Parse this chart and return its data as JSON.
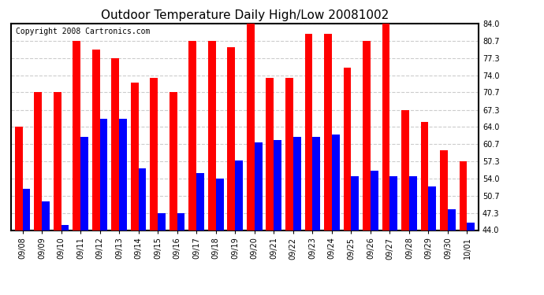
{
  "title": "Outdoor Temperature Daily High/Low 20081002",
  "copyright": "Copyright 2008 Cartronics.com",
  "dates": [
    "09/08",
    "09/09",
    "09/10",
    "09/11",
    "09/12",
    "09/13",
    "09/14",
    "09/15",
    "09/16",
    "09/17",
    "09/18",
    "09/19",
    "09/20",
    "09/21",
    "09/22",
    "09/23",
    "09/24",
    "09/25",
    "09/26",
    "09/27",
    "09/28",
    "09/29",
    "09/30",
    "10/01"
  ],
  "highs": [
    64.0,
    70.7,
    70.7,
    80.7,
    79.0,
    77.3,
    72.5,
    73.5,
    70.7,
    80.7,
    80.7,
    79.5,
    84.0,
    73.5,
    73.5,
    82.0,
    82.0,
    75.5,
    80.7,
    84.0,
    67.3,
    65.0,
    59.5,
    57.3
  ],
  "lows": [
    52.0,
    49.5,
    45.0,
    62.0,
    65.5,
    65.5,
    56.0,
    47.3,
    47.3,
    55.0,
    54.0,
    57.5,
    61.0,
    61.5,
    62.0,
    62.0,
    62.5,
    54.5,
    55.5,
    54.5,
    54.5,
    52.5,
    48.0,
    45.5
  ],
  "high_color": "#ff0000",
  "low_color": "#0000ff",
  "bg_color": "#ffffff",
  "ylim_min": 44.0,
  "ylim_max": 84.0,
  "yticks": [
    44.0,
    47.3,
    50.7,
    54.0,
    57.3,
    60.7,
    64.0,
    67.3,
    70.7,
    74.0,
    77.3,
    80.7,
    84.0
  ],
  "grid_color": "#cccccc",
  "title_fontsize": 11,
  "copyright_fontsize": 7,
  "tick_fontsize": 7,
  "bar_width": 0.4
}
